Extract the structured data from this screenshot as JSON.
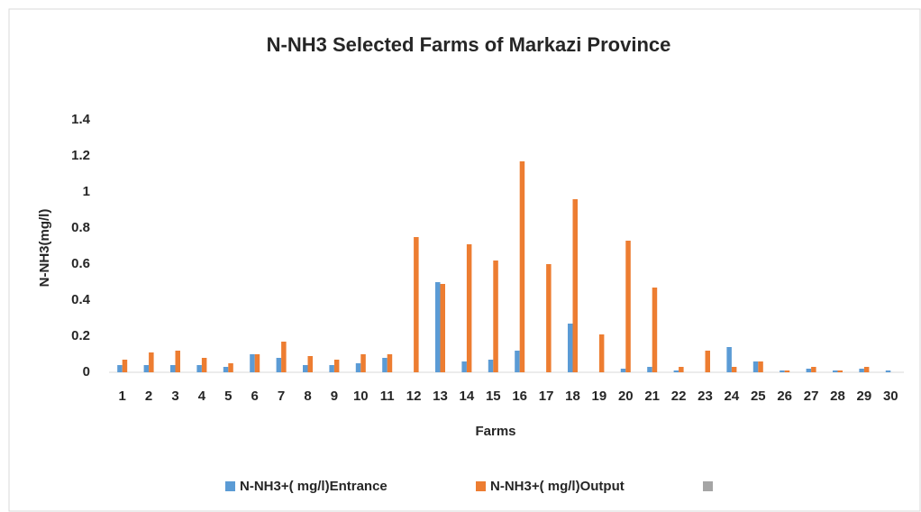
{
  "chart_data": {
    "type": "bar",
    "title": "N-NH3 Selected Farms of Markazi Province",
    "xlabel": "Farms",
    "ylabel": "N-NH3(mg/l)",
    "categories": [
      1,
      2,
      3,
      4,
      5,
      6,
      7,
      8,
      9,
      10,
      11,
      12,
      13,
      14,
      15,
      16,
      17,
      18,
      19,
      20,
      21,
      22,
      23,
      24,
      25,
      26,
      27,
      28,
      29,
      30
    ],
    "series": [
      {
        "name": "N-NH3+( mg/l)Entrance",
        "color": "#5b9bd5",
        "values": [
          0.04,
          0.04,
          0.04,
          0.04,
          0.03,
          0.1,
          0.08,
          0.04,
          0.04,
          0.05,
          0.08,
          0,
          0.5,
          0.06,
          0.07,
          0.12,
          0,
          0.27,
          0,
          0.02,
          0.03,
          0.01,
          0,
          0.14,
          0.06,
          0.01,
          0.02,
          0.01,
          0.02,
          0.01
        ]
      },
      {
        "name": "N-NH3+( mg/l)Output",
        "color": "#ed7d31",
        "values": [
          0.07,
          0.11,
          0.12,
          0.08,
          0.05,
          0.1,
          0.17,
          0.09,
          0.07,
          0.1,
          0.1,
          0.75,
          0.49,
          0.71,
          0.62,
          1.17,
          0.6,
          0.96,
          0.21,
          0.73,
          0.47,
          0.03,
          0.12,
          0.03,
          0.06,
          0.01,
          0.03,
          0.01,
          0.03,
          0
        ]
      }
    ],
    "ylim": [
      0,
      1.4
    ],
    "yticks": [
      0,
      0.2,
      0.4,
      0.6,
      0.8,
      1,
      1.2,
      1.4
    ],
    "grid": false
  }
}
